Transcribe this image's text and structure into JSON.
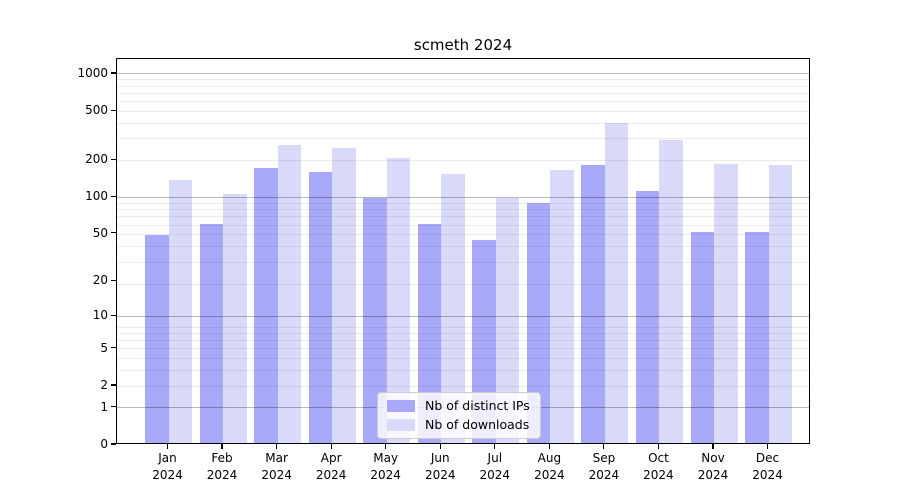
{
  "title": "scmeth 2024",
  "chart_data": {
    "type": "bar",
    "title": "scmeth 2024",
    "categories": [
      "Jan",
      "Feb",
      "Mar",
      "Apr",
      "May",
      "Jun",
      "Jul",
      "Aug",
      "Sep",
      "Oct",
      "Nov",
      "Dec"
    ],
    "year": "2024",
    "series": [
      {
        "name": "Nb of distinct IPs",
        "color": "#a9a9f9",
        "values": [
          47,
          58,
          165,
          155,
          94,
          58,
          43,
          87,
          176,
          108,
          50,
          50
        ]
      },
      {
        "name": "Nb of downloads",
        "color": "#d9d9f9",
        "values": [
          134,
          102,
          255,
          240,
          200,
          148,
          94,
          160,
          385,
          280,
          180,
          177
        ]
      }
    ],
    "xlabel": "",
    "ylabel": "",
    "y_ticks": [
      0,
      1,
      2,
      5,
      10,
      20,
      50,
      100,
      200,
      500,
      1000
    ],
    "major_grid_values": [
      1,
      10,
      100,
      1000
    ],
    "scale": "log1p",
    "ylim": [
      0,
      1322
    ],
    "grid": true,
    "legend_position": "lower center",
    "grid_major_color": "#b8b8b8",
    "grid_minor_color": "#ececec",
    "axis_color": "#000000",
    "background_color": "#ffffff"
  }
}
